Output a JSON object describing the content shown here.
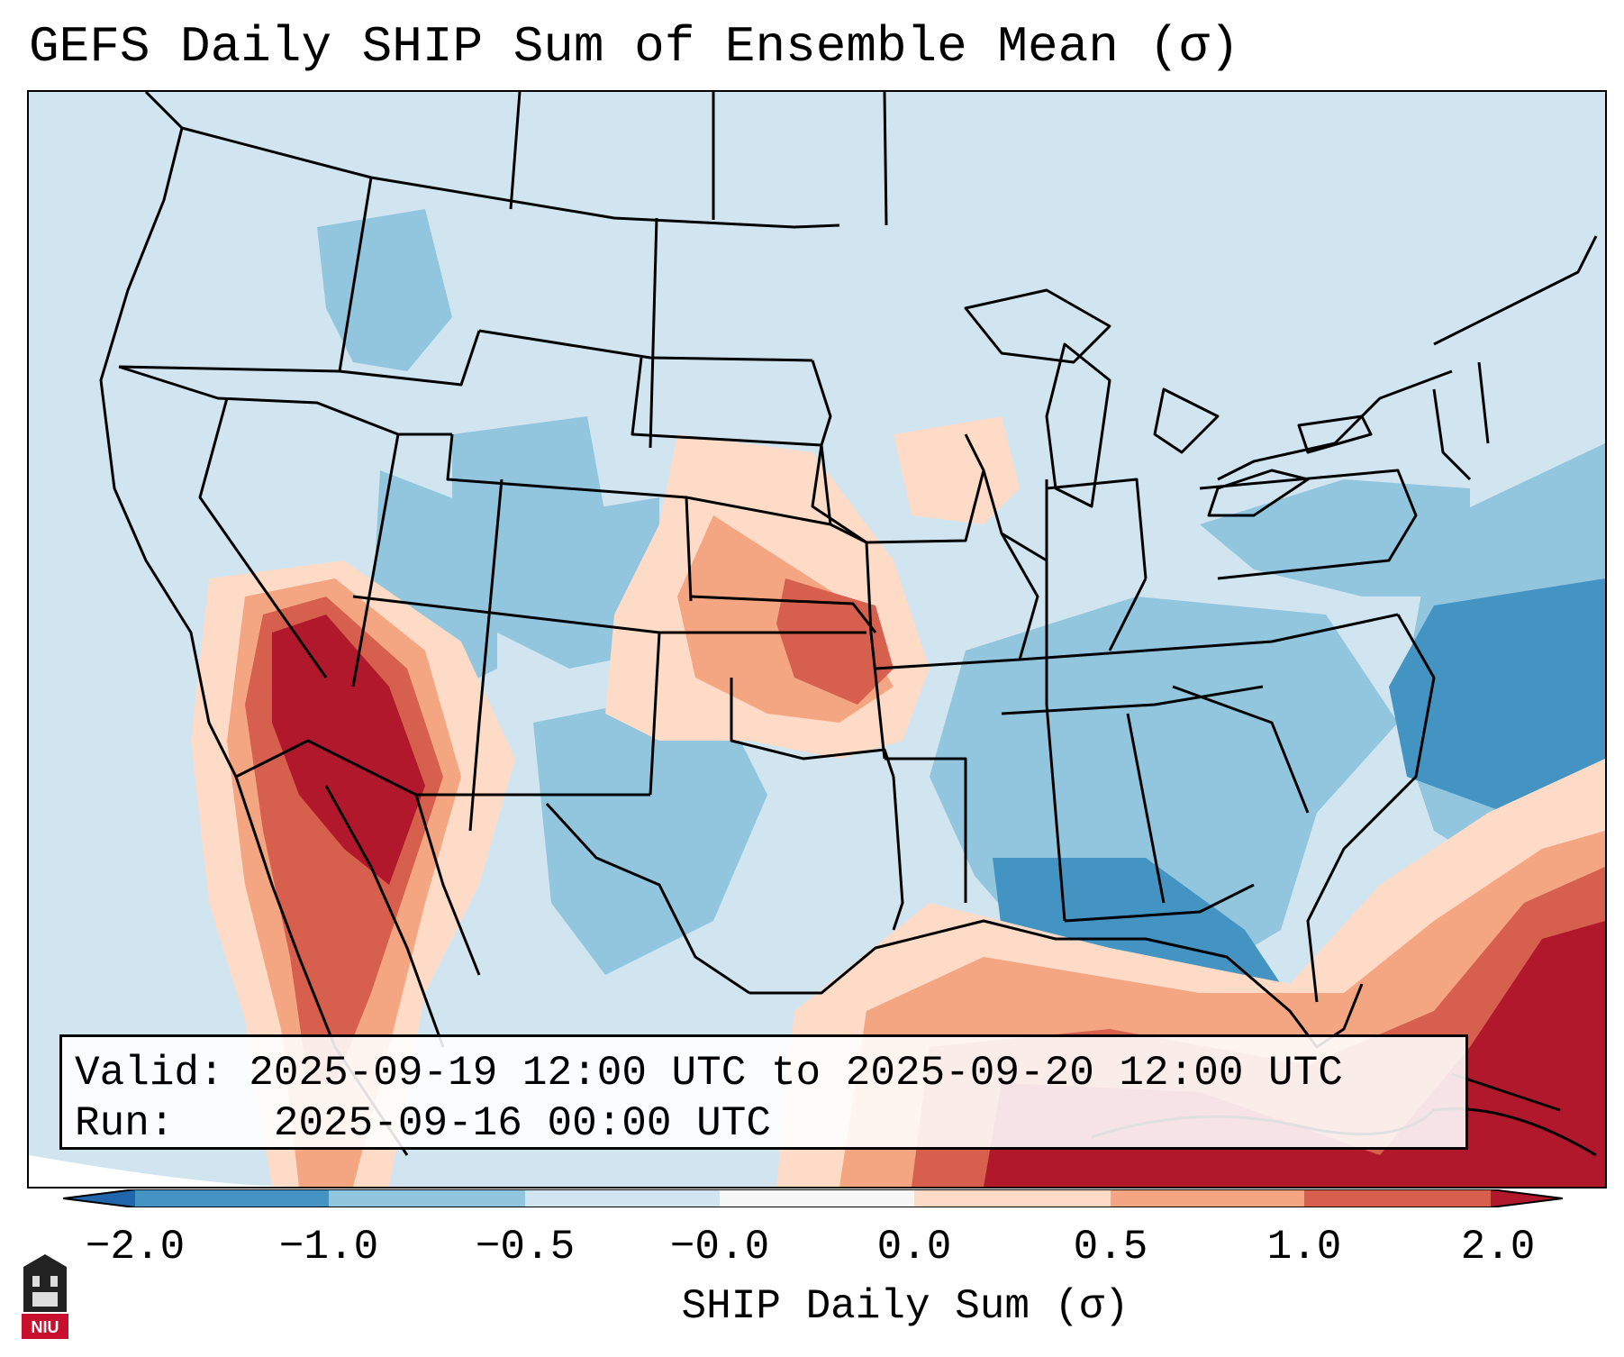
{
  "title": "GEFS Daily SHIP Sum of Ensemble Mean (σ)",
  "info": {
    "valid_label": "Valid:",
    "valid_value": "2025-09-19 12:00 UTC to 2025-09-20 12:00 UTC",
    "run_label": "Run:",
    "run_value": "2025-09-16 00:00 UTC"
  },
  "colorbar": {
    "label": "SHIP Daily Sum (σ)",
    "ticks": [
      "−2.0",
      "−1.0",
      "−0.5",
      "−0.0",
      "0.0",
      "0.5",
      "1.0",
      "2.0"
    ],
    "colors": [
      "#4393c3",
      "#92c5de",
      "#d1e5f0",
      "#f7f7f7",
      "#fddbc7",
      "#f4a582",
      "#d6604d",
      "#b2182b"
    ],
    "extend_min_color": "#2166ac",
    "extend_max_color": "#b2182b"
  },
  "logo": {
    "text": "NIU"
  },
  "map": {
    "region": "Continental United States",
    "levels": {
      "strong_negative": "#4393c3",
      "negative": "#92c5de",
      "neutral_negative": "#d1e5f0",
      "neutral_positive": "#fddbc7",
      "positive": "#f4a582",
      "strong_positive": "#d6604d",
      "extreme_positive": "#b2182b"
    }
  }
}
